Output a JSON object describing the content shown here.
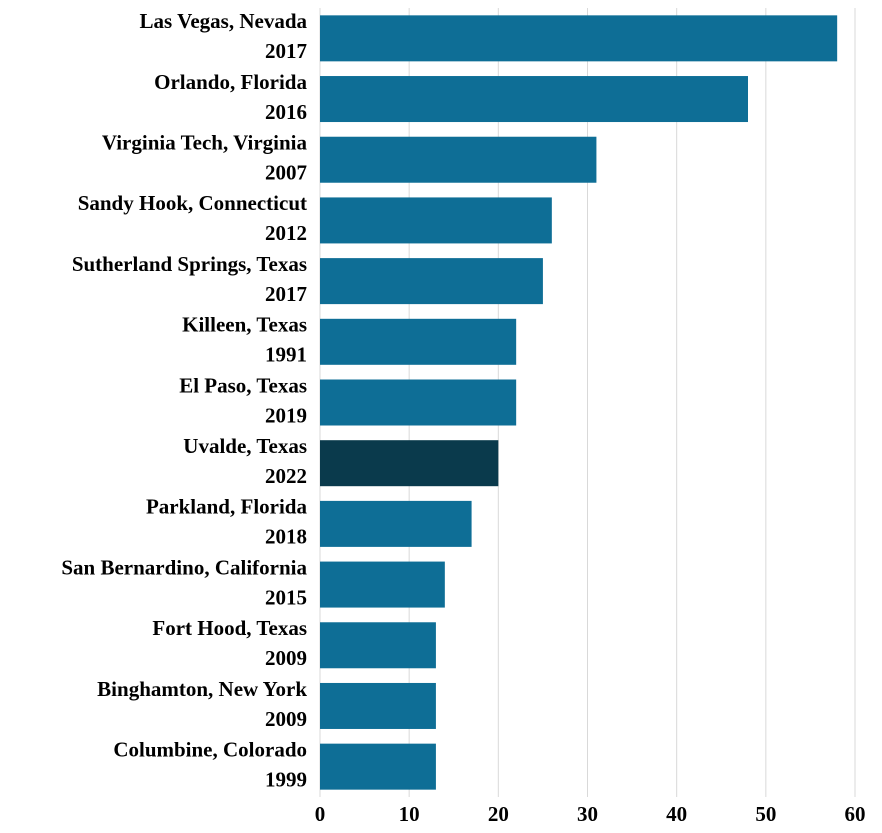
{
  "chart_data": {
    "type": "bar",
    "orientation": "horizontal",
    "categories": [
      [
        "Las Vegas, Nevada",
        "2017"
      ],
      [
        "Orlando, Florida",
        "2016"
      ],
      [
        "Virginia Tech, Virginia",
        "2007"
      ],
      [
        "Sandy Hook, Connecticut",
        "2012"
      ],
      [
        "Sutherland Springs, Texas",
        "2017"
      ],
      [
        "Killeen, Texas",
        "1991"
      ],
      [
        "El Paso, Texas",
        "2019"
      ],
      [
        "Uvalde, Texas",
        "2022"
      ],
      [
        "Parkland, Florida",
        "2018"
      ],
      [
        "San Bernardino, California",
        "2015"
      ],
      [
        "Fort Hood, Texas",
        "2009"
      ],
      [
        "Binghamton, New York",
        "2009"
      ],
      [
        "Columbine, Colorado",
        "1999"
      ]
    ],
    "values": [
      58,
      48,
      31,
      26,
      25,
      22,
      22,
      20,
      17,
      14,
      13,
      13,
      13
    ],
    "colors": [
      "#0e6e96",
      "#0e6e96",
      "#0e6e96",
      "#0e6e96",
      "#0e6e96",
      "#0e6e96",
      "#0e6e96",
      "#0a3a4c",
      "#0e6e96",
      "#0e6e96",
      "#0e6e96",
      "#0e6e96",
      "#0e6e96"
    ],
    "xlim": [
      0,
      60
    ],
    "xticks": [
      0,
      10,
      20,
      30,
      40,
      50,
      60
    ],
    "grid": true
  }
}
